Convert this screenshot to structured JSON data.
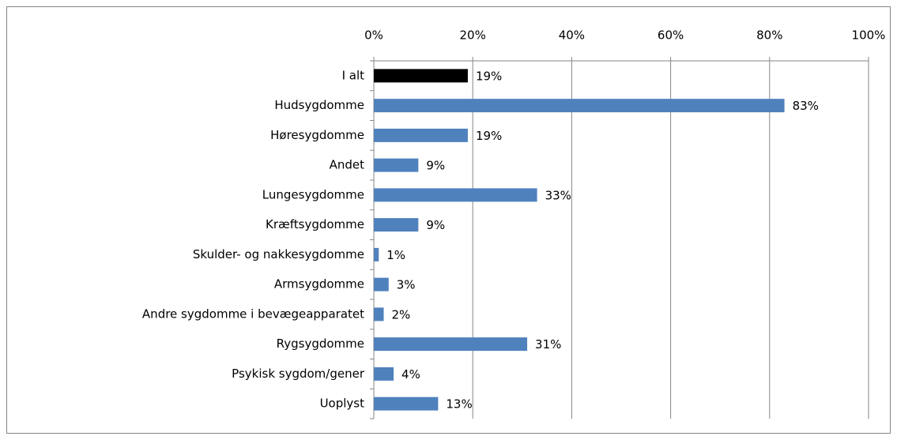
{
  "chart_data": {
    "type": "bar",
    "categories": [
      "I alt",
      "Hudsygdomme",
      "Høresygdomme",
      "Andet",
      "Lungesygdomme",
      "Kræftsygdomme",
      "Skulder- og nakkesygdomme",
      "Armsygdomme",
      "Andre sygdomme i bevægeapparatet",
      "Rygsygdomme",
      "Psykisk sygdom/gener",
      "Uoplyst"
    ],
    "values": [
      19,
      83,
      19,
      9,
      33,
      9,
      1,
      3,
      2,
      31,
      4,
      13
    ],
    "value_labels": [
      "19%",
      "83%",
      "19%",
      "9%",
      "33%",
      "9%",
      "1%",
      "3%",
      "2%",
      "31%",
      "4%",
      "13%"
    ],
    "colors": [
      "#000000",
      "#4f81bd",
      "#4f81bd",
      "#4f81bd",
      "#4f81bd",
      "#4f81bd",
      "#4f81bd",
      "#4f81bd",
      "#4f81bd",
      "#4f81bd",
      "#4f81bd",
      "#4f81bd"
    ],
    "xlim": [
      0,
      100
    ],
    "xticks": [
      {
        "value": 0,
        "label": "0%"
      },
      {
        "value": 20,
        "label": "20%"
      },
      {
        "value": 40,
        "label": "40%"
      },
      {
        "value": 60,
        "label": "60%"
      },
      {
        "value": 80,
        "label": "80%"
      },
      {
        "value": 100,
        "label": "100%"
      }
    ],
    "grid": true
  }
}
